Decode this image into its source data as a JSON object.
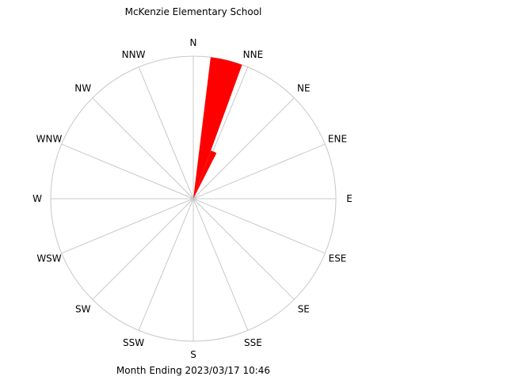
{
  "chart_data": {
    "type": "wind-rose",
    "title": "McKenzie Elementary School",
    "footer": "Month Ending 2023/03/17 10:46",
    "directions": [
      "N",
      "NNE",
      "NE",
      "ENE",
      "E",
      "ESE",
      "SE",
      "SSE",
      "S",
      "SSW",
      "SW",
      "WSW",
      "W",
      "WNW",
      "NW",
      "NNW"
    ],
    "max_value": 100,
    "grid": true,
    "colors": {
      "petal": "#ff0000",
      "grid": "#c8c8c8",
      "text": "#000000"
    },
    "petals": [
      {
        "direction": "N",
        "from_deg": 7,
        "to_deg": 20,
        "value": 100
      },
      {
        "direction": "NNE",
        "from_deg": 20,
        "to_deg": 27,
        "value": 36
      }
    ]
  }
}
